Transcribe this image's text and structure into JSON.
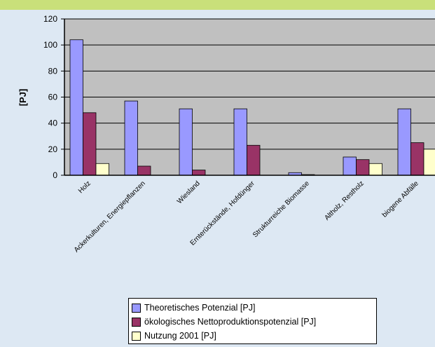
{
  "colors": {
    "top_band": "#c9e07a",
    "page_bg": "#dde8f3",
    "plot_bg": "#c0c0c0",
    "series": [
      "#9999ff",
      "#993366",
      "#ffffcc"
    ]
  },
  "chart_data": {
    "type": "bar",
    "title": "",
    "xlabel": "",
    "ylabel": "[PJ]",
    "ylim": [
      0,
      120
    ],
    "yticks": [
      0,
      20,
      40,
      60,
      80,
      100,
      120
    ],
    "yticks_labels": [
      "0",
      "20",
      "40",
      "60",
      "80",
      "100",
      "120"
    ],
    "grid": true,
    "legend_position": "bottom",
    "categories": [
      "Holz",
      "Ackerkulturen, Energiepflanzen",
      "Wiesland",
      "Ernterückstände, Hofdünger",
      "Strukturreiche Biomasse",
      "Altholz, Restholz",
      "biogene Abfälle"
    ],
    "series": [
      {
        "name": "Theoretisches Potenzial [PJ]",
        "values": [
          104,
          57,
          51,
          51,
          2,
          14,
          51
        ]
      },
      {
        "name": "ökologisches Nettoproduktionspotenzial [PJ]",
        "values": [
          48,
          7,
          4,
          23,
          0.5,
          12,
          25
        ]
      },
      {
        "name": "Nutzung 2001 [PJ]",
        "values": [
          9,
          0,
          0,
          0,
          0,
          9,
          20
        ]
      }
    ]
  }
}
